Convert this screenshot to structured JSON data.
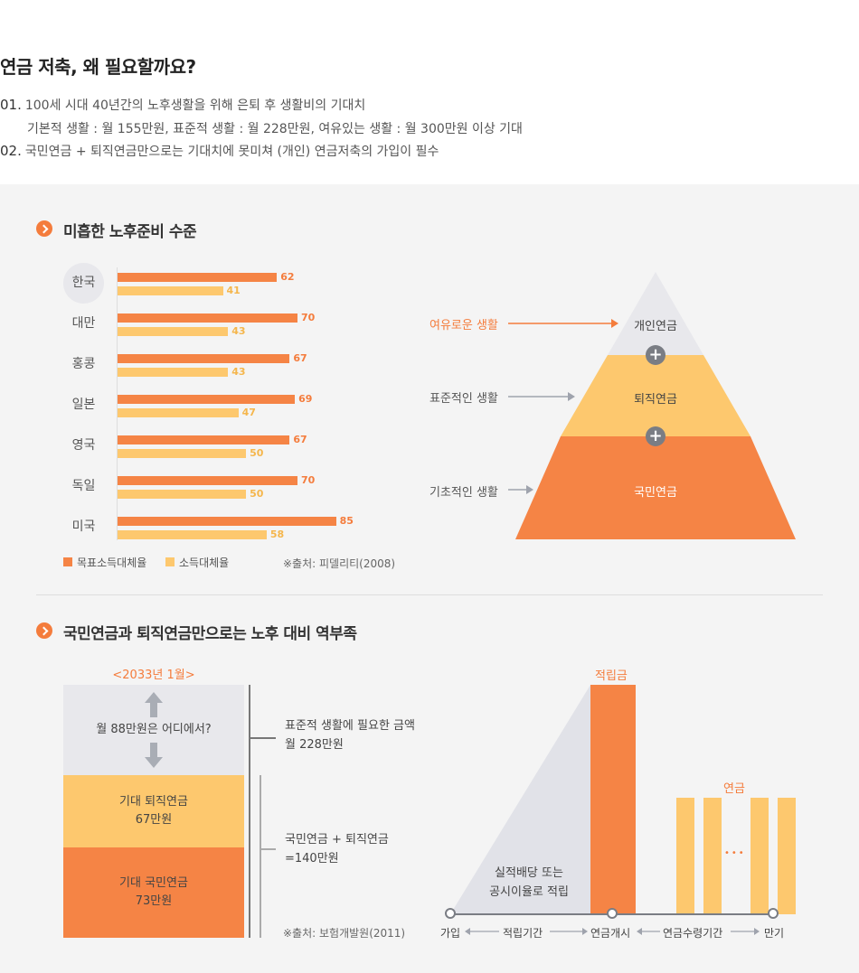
{
  "header": {
    "title": "연금 저축, 왜 필요할까요?",
    "lines": [
      {
        "num": "01.",
        "text": "100세 시대 40년간의 노후생활을 위해 은퇴 후 생활비의 기대치"
      },
      {
        "num": "",
        "text": "기본적 생활 : 월 155만원, 표준적 생활 : 월 228만원, 여유있는 생활 : 월 300만원 이상 기대"
      },
      {
        "num": "02.",
        "text": "국민연금 + 퇴직연금만으로는 기대치에 못미쳐 (개인) 연금저축의 가입이 필수"
      }
    ]
  },
  "section1": {
    "title": "미흡한 노후준비 수준",
    "legend": {
      "target": "목표소득대체율",
      "income": "소득대체율"
    },
    "source": "※출처: 피델리티(2008)",
    "colors": {
      "target": "#f58445",
      "income": "#fdc86e"
    }
  },
  "chart_data": {
    "type": "bar",
    "orientation": "horizontal",
    "categories": [
      "한국",
      "대만",
      "홍콩",
      "일본",
      "영국",
      "독일",
      "미국"
    ],
    "series": [
      {
        "name": "목표소득대체율",
        "values": [
          62,
          70,
          67,
          69,
          67,
          70,
          85
        ]
      },
      {
        "name": "소득대체율",
        "values": [
          41,
          43,
          43,
          47,
          50,
          50,
          58
        ]
      }
    ],
    "xlim": [
      0,
      95
    ]
  },
  "pyramid": {
    "levels": [
      {
        "label": "여유로운 생활",
        "name": "개인연금"
      },
      {
        "label": "표준적인 생활",
        "name": "퇴직연금"
      },
      {
        "label": "기초적인 생활",
        "name": "국민연금"
      }
    ],
    "plus": "+"
  },
  "section2": {
    "title": "국민연금과 퇴직연금만으로는 노후 대비 역부족",
    "year": "<2033년 1월>",
    "gap_text": "월 88만원은 어디에서?",
    "retire_box": [
      "기대 퇴직연금",
      "67만원"
    ],
    "national_box": [
      "기대 국민연금",
      "73만원"
    ],
    "note1": [
      "표준적 생활에 필요한 금액",
      "월 228만원"
    ],
    "note2": [
      "국민연금 + 퇴직연금",
      "=140만원"
    ],
    "source": "※출처: 보험개발원(2011)"
  },
  "timeline": {
    "accum_label": "적립금",
    "pension_label": "연금",
    "triangle_text": [
      "실적배당 또는",
      "공시이율로 적립"
    ],
    "dots": "•••",
    "points": [
      "가입",
      "적립기간",
      "연금개시",
      "연금수령기간",
      "만기"
    ]
  }
}
